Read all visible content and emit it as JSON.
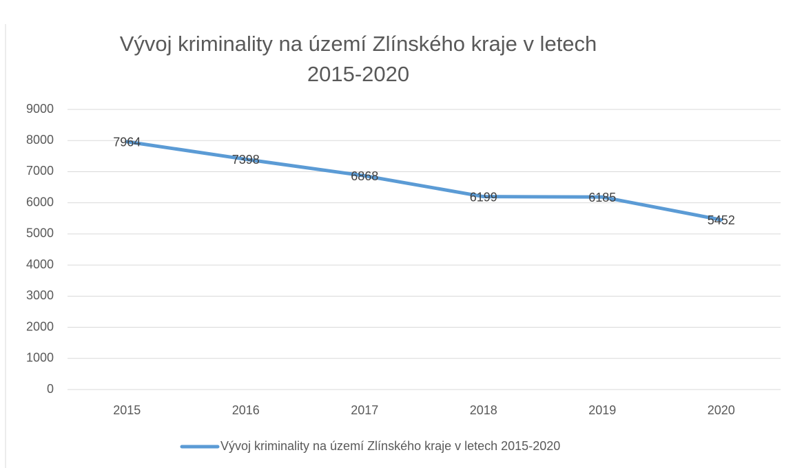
{
  "chart_data": {
    "type": "line",
    "title": "Vývoj kriminality na území Zlínského kraje v letech 2015-2020",
    "categories": [
      "2015",
      "2016",
      "2017",
      "2018",
      "2019",
      "2020"
    ],
    "series": [
      {
        "name": "Vývoj kriminality na území Zlínského kraje v letech 2015-2020",
        "color": "#5b9bd5",
        "values": [
          7964,
          7398,
          6868,
          6199,
          6185,
          5452
        ]
      }
    ],
    "ylim": [
      0,
      9000
    ],
    "yticks": [
      0,
      1000,
      2000,
      3000,
      4000,
      5000,
      6000,
      7000,
      8000,
      9000
    ],
    "grid": true,
    "legend": "bottom"
  }
}
